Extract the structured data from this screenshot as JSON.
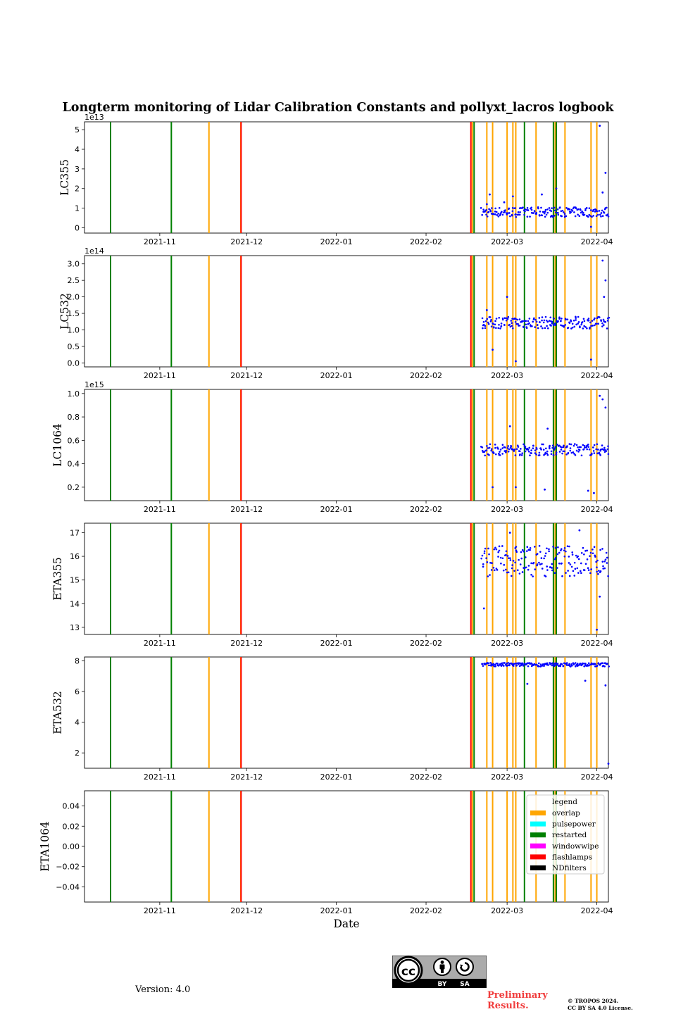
{
  "chart_data": {
    "type": "scatter",
    "title": "Longterm monitoring of Lidar Calibration Constants and pollyxt_lacros logbook",
    "xlabel": "Date",
    "x_range": [
      "2021-10-06",
      "2022-04-05"
    ],
    "x_ticks": [
      {
        "date": "2021-11-01",
        "label": "2021-11"
      },
      {
        "date": "2021-12-01",
        "label": "2021-12"
      },
      {
        "date": "2022-01-01",
        "label": "2022-01"
      },
      {
        "date": "2022-02-01",
        "label": "2022-02"
      },
      {
        "date": "2022-03-01",
        "label": "2022-03"
      },
      {
        "date": "2022-04-01",
        "label": "2022-04"
      }
    ],
    "logbook_events": [
      {
        "date": "2021-10-15",
        "type": "restarted"
      },
      {
        "date": "2021-11-05",
        "type": "restarted"
      },
      {
        "date": "2021-11-18",
        "type": "overlap"
      },
      {
        "date": "2021-11-29",
        "type": "overlap"
      },
      {
        "date": "2021-11-29.1",
        "type": "flashlamps"
      },
      {
        "date": "2022-02-16.5",
        "type": "flashlamps"
      },
      {
        "date": "2022-02-17",
        "type": "overlap"
      },
      {
        "date": "2022-02-17.6",
        "type": "restarted"
      },
      {
        "date": "2022-02-22",
        "type": "overlap"
      },
      {
        "date": "2022-02-24",
        "type": "overlap"
      },
      {
        "date": "2022-03-01",
        "type": "overlap"
      },
      {
        "date": "2022-03-03",
        "type": "overlap"
      },
      {
        "date": "2022-03-04",
        "type": "overlap"
      },
      {
        "date": "2022-03-07",
        "type": "restarted"
      },
      {
        "date": "2022-03-11",
        "type": "overlap"
      },
      {
        "date": "2022-03-17",
        "type": "restarted"
      },
      {
        "date": "2022-03-17.6",
        "type": "overlap"
      },
      {
        "date": "2022-03-18",
        "type": "restarted"
      },
      {
        "date": "2022-03-21",
        "type": "overlap"
      },
      {
        "date": "2022-03-30",
        "type": "overlap"
      },
      {
        "date": "2022-04-01",
        "type": "overlap"
      }
    ],
    "event_colors": {
      "overlap": "#ffa500",
      "pulsepower": "#00ffff",
      "restarted": "#008000",
      "windowwipe": "#ff00ff",
      "flashlamps": "#ff0000",
      "NDfilters": "#000000"
    },
    "legend": {
      "title": "legend",
      "placement": "upper-right of last panel",
      "entries": [
        {
          "label": "overlap",
          "color": "#ffa500"
        },
        {
          "label": "pulsepower",
          "color": "#00ffff"
        },
        {
          "label": "restarted",
          "color": "#008000"
        },
        {
          "label": "windowwipe",
          "color": "#ff00ff"
        },
        {
          "label": "flashlamps",
          "color": "#ff0000"
        },
        {
          "label": "NDfilters",
          "color": "#000000"
        }
      ]
    },
    "point_color": "#0000ff",
    "panels": [
      {
        "ylabel": "LC355",
        "offset": "1e13",
        "scale": 10000000000000.0,
        "ylim": [
          -0.27,
          5.4
        ],
        "yticks": [
          0,
          1,
          2,
          3,
          4,
          5
        ],
        "tick_labels": [
          "0",
          "1",
          "2",
          "3",
          "4",
          "5"
        ],
        "baseline": 0.8,
        "spread": 0.25,
        "events": [
          {
            "date": "2022-02-22",
            "v": 1.2
          },
          {
            "date": "2022-02-23",
            "v": 1.7
          },
          {
            "date": "2022-02-28",
            "v": 1.3
          },
          {
            "date": "2022-03-03",
            "v": 1.6
          },
          {
            "date": "2022-03-13",
            "v": 1.7
          },
          {
            "date": "2022-03-18",
            "v": 2.0
          },
          {
            "date": "2022-03-30",
            "v": 0.05
          },
          {
            "date": "2022-04-02",
            "v": 5.2
          },
          {
            "date": "2022-04-03",
            "v": 1.8
          },
          {
            "date": "2022-04-04",
            "v": 2.8
          }
        ]
      },
      {
        "ylabel": "LC532",
        "offset": "1e14",
        "scale": 100000000000000.0,
        "ylim": [
          -0.12,
          3.25
        ],
        "yticks": [
          0,
          0.5,
          1.0,
          1.5,
          2.0,
          2.5,
          3.0
        ],
        "tick_labels": [
          "0.0",
          "0.5",
          "1.0",
          "1.5",
          "2.0",
          "2.5",
          "3.0"
        ],
        "baseline": 1.22,
        "spread": 0.18,
        "events": [
          {
            "date": "2022-02-22",
            "v": 1.6
          },
          {
            "date": "2022-02-24",
            "v": 0.4
          },
          {
            "date": "2022-03-01",
            "v": 2.0
          },
          {
            "date": "2022-03-04",
            "v": 0.05
          },
          {
            "date": "2022-03-30",
            "v": 0.1
          },
          {
            "date": "2022-04-03",
            "v": 3.1
          },
          {
            "date": "2022-04-03.5",
            "v": 2.0
          },
          {
            "date": "2022-04-04",
            "v": 2.5
          }
        ]
      },
      {
        "ylabel": "LC1064",
        "offset": "1e15",
        "scale": 1000000000000000.0,
        "ylim": [
          0.085,
          1.035
        ],
        "yticks": [
          0.2,
          0.4,
          0.6,
          0.8,
          1.0
        ],
        "tick_labels": [
          "0.2",
          "0.4",
          "0.6",
          "0.8",
          "1.0"
        ],
        "baseline": 0.52,
        "spread": 0.05,
        "events": [
          {
            "date": "2022-02-24",
            "v": 0.2
          },
          {
            "date": "2022-03-02",
            "v": 0.72
          },
          {
            "date": "2022-03-04",
            "v": 0.2
          },
          {
            "date": "2022-03-15",
            "v": 0.7
          },
          {
            "date": "2022-03-14",
            "v": 0.18
          },
          {
            "date": "2022-03-29",
            "v": 0.17
          },
          {
            "date": "2022-03-31",
            "v": 0.15
          },
          {
            "date": "2022-04-02",
            "v": 0.98
          },
          {
            "date": "2022-04-03",
            "v": 0.95
          },
          {
            "date": "2022-04-04",
            "v": 0.88
          }
        ]
      },
      {
        "ylabel": "ETA355",
        "offset": "",
        "scale": 1,
        "ylim": [
          12.7,
          17.4
        ],
        "yticks": [
          13,
          14,
          15,
          16,
          17
        ],
        "tick_labels": [
          "13",
          "14",
          "15",
          "16",
          "17"
        ],
        "baseline": 15.8,
        "spread": 0.65,
        "events": [
          {
            "date": "2022-02-21",
            "v": 13.8
          },
          {
            "date": "2022-03-02",
            "v": 17.0
          },
          {
            "date": "2022-03-26",
            "v": 17.1
          },
          {
            "date": "2022-04-01",
            "v": 12.9
          },
          {
            "date": "2022-04-02",
            "v": 14.3
          }
        ]
      },
      {
        "ylabel": "ETA532",
        "offset": "",
        "scale": 1,
        "ylim": [
          1.0,
          8.25
        ],
        "yticks": [
          2,
          4,
          6,
          8
        ],
        "tick_labels": [
          "2",
          "4",
          "6",
          "8"
        ],
        "baseline": 7.75,
        "spread": 0.12,
        "events": [
          {
            "date": "2022-03-08",
            "v": 6.5
          },
          {
            "date": "2022-03-28",
            "v": 6.7
          },
          {
            "date": "2022-04-04",
            "v": 6.4
          },
          {
            "date": "2022-04-05",
            "v": 1.3
          }
        ]
      },
      {
        "ylabel": "ETA1064",
        "offset": "",
        "scale": 1,
        "ylim": [
          -0.055,
          0.055
        ],
        "yticks": [
          -0.04,
          -0.02,
          0.0,
          0.02,
          0.04
        ],
        "tick_labels": [
          "−0.04",
          "−0.02",
          "0.00",
          "0.02",
          "0.04"
        ],
        "baseline": null,
        "spread": 0,
        "events": []
      }
    ],
    "data_start": "2022-02-20",
    "data_end": "2022-04-05"
  },
  "footer": {
    "version": "Version: 4.0",
    "preliminary_line1": "Preliminary",
    "preliminary_line2": "Results.",
    "copyright_line1": "© TROPOS 2024.",
    "copyright_line2": "CC BY SA 4.0 License.",
    "license_badge": {
      "cc": "cc",
      "by": "BY",
      "sa": "SA"
    }
  }
}
